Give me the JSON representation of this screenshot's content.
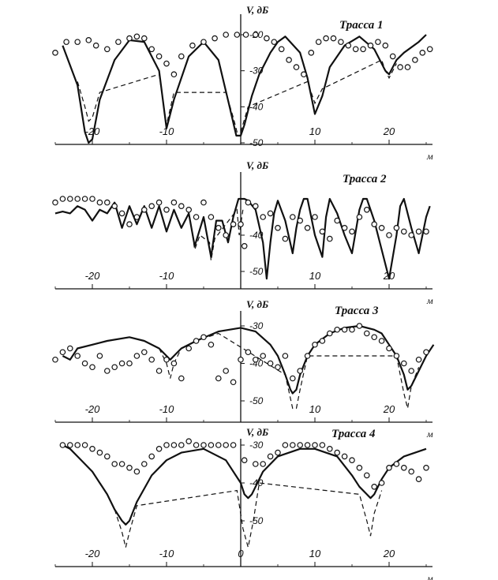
{
  "chart_data": [
    {
      "type": "line",
      "title": "Трасса 1",
      "ylabel": "V, дБ",
      "xlabel": "м",
      "x_ticks": [
        -20,
        -10,
        10,
        20
      ],
      "x_tick_labels": [
        "-20",
        "-10",
        "10",
        "20"
      ],
      "y_ticks": [
        -20,
        -30,
        -40,
        -50
      ],
      "y_tick_labels": [
        "-20",
        "-30",
        "-40",
        "-50"
      ],
      "ylim": [
        -50,
        -17
      ],
      "xlim": [
        -25,
        26
      ],
      "series": [
        {
          "style": "solid",
          "x": [
            -24,
            -22,
            -21,
            -20.5,
            -20,
            -19,
            -17,
            -15,
            -13,
            -11,
            -10,
            -9,
            -7,
            -5,
            -3,
            -1.5,
            -0.6,
            0,
            0.5,
            1,
            1.5,
            2,
            2.5,
            3,
            3.5,
            4,
            5,
            6,
            8,
            9,
            10,
            11,
            12,
            14,
            16,
            18,
            19,
            19.5,
            20,
            21,
            22,
            24,
            25
          ],
          "y": [
            -23,
            -34,
            -47,
            -50,
            -49,
            -38,
            -27,
            -21.5,
            -22,
            -30,
            -46,
            -38,
            -26,
            -22,
            -27,
            -40,
            -48,
            -48,
            -45,
            -41,
            -37,
            -34,
            -31,
            -29,
            -27,
            -25,
            -22,
            -20.5,
            -25,
            -32,
            -42,
            -37,
            -29,
            -23,
            -20.5,
            -24,
            -28,
            -30,
            -31,
            -27,
            -25,
            -22,
            -20
          ]
        },
        {
          "style": "dashed",
          "x": [
            -22,
            -21,
            -20.5,
            -20,
            -19,
            -11,
            -10,
            -9,
            -2,
            -1,
            -0.5,
            0,
            1,
            9,
            10,
            11,
            19,
            19.5,
            20,
            21
          ],
          "y": [
            -33,
            -40,
            -44,
            -43,
            -36,
            -31,
            -45,
            -36,
            -36,
            -43,
            -47,
            -47,
            -40,
            -33,
            -39,
            -35,
            -27,
            -30,
            -32,
            -28
          ]
        }
      ],
      "measured": {
        "x": [
          -25,
          -23.5,
          -22,
          -20.5,
          -19.5,
          -18,
          -16.5,
          -15,
          -14,
          -13,
          -12,
          -11,
          -10,
          -9,
          -8,
          -6.5,
          -5,
          -3.5,
          -2,
          -0.5,
          0.7,
          2,
          3.5,
          4.5,
          5.5,
          6.5,
          7.5,
          8.5,
          9.5,
          10.5,
          11.5,
          12.5,
          13.5,
          14.5,
          15.5,
          16.5,
          17.5,
          18.5,
          19.5,
          20.5,
          21.5,
          22.5,
          23.5,
          24.5,
          25.5
        ],
        "y": [
          -25,
          -22,
          -22,
          -21.5,
          -23,
          -24,
          -22,
          -21,
          -20.5,
          -21,
          -24,
          -26,
          -28,
          -31,
          -26,
          -23,
          -22,
          -21,
          -20,
          -20,
          -20,
          -20,
          -21,
          -22,
          -24,
          -27,
          -29,
          -31,
          -25,
          -22,
          -21,
          -21,
          -22,
          -23,
          -24,
          -24,
          -23,
          -22,
          -23,
          -26,
          -29,
          -29,
          -27,
          -25,
          -24
        ]
      }
    },
    {
      "type": "line",
      "title": "Трасса 2",
      "ylabel": "V, дБ",
      "xlabel": "м",
      "x_ticks": [
        -20,
        -10,
        10,
        20
      ],
      "x_tick_labels": [
        "-20",
        "-10",
        "10",
        "20"
      ],
      "y_ticks": [
        -40,
        -50
      ],
      "y_tick_labels": [
        "-40",
        "-50"
      ],
      "ylim": [
        -52,
        -28
      ],
      "xlim": [
        -25,
        26
      ],
      "series": [
        {
          "style": "solid",
          "x": [
            -25,
            -24,
            -23,
            -22,
            -21,
            -20,
            -19,
            -18,
            -17,
            -16,
            -15,
            -14,
            -13,
            -12,
            -11,
            -10,
            -9,
            -8,
            -7,
            -6.2,
            -5,
            -4,
            -3.3,
            -2.5,
            -1.7,
            -1,
            -0.3,
            0,
            0.5,
            1,
            2,
            3,
            3.5,
            4,
            4.5,
            5,
            6,
            7,
            7.5,
            8,
            8.5,
            9,
            10,
            11,
            11.5,
            12,
            13,
            14,
            15,
            16,
            16.5,
            17,
            18,
            19,
            20,
            21,
            21.5,
            22,
            23,
            24,
            25,
            25.5
          ],
          "y": [
            -34,
            -33.5,
            -34,
            -32,
            -33,
            -36,
            -33,
            -34,
            -31,
            -38,
            -32,
            -37,
            -32,
            -38,
            -32,
            -39,
            -33,
            -38,
            -34,
            -43,
            -35,
            -46,
            -36,
            -36,
            -42,
            -35,
            -30,
            -30,
            -30,
            -30.5,
            -33,
            -42,
            -52,
            -42,
            -34,
            -30.5,
            -36,
            -45,
            -38,
            -33,
            -30,
            -30,
            -40,
            -46,
            -35,
            -30,
            -34,
            -40,
            -45,
            -33,
            -30,
            -30,
            -36,
            -44,
            -52,
            -40,
            -32,
            -30,
            -38,
            -45,
            -35,
            -32
          ]
        },
        {
          "style": "dashed",
          "x": [
            -6.5,
            -6.2,
            -5.5,
            -4.2,
            -4,
            -3.5,
            -0.5,
            -0.2,
            0.3
          ],
          "y": [
            -40,
            -44,
            -40,
            -42,
            -47,
            -41,
            -33,
            -40,
            -33
          ]
        }
      ],
      "measured": {
        "x": [
          -25,
          -24,
          -23,
          -22,
          -21,
          -20,
          -19,
          -18,
          -17,
          -16,
          -15,
          -14,
          -13,
          -12,
          -11,
          -10,
          -9,
          -8,
          -7,
          -6,
          -5,
          -4,
          -3,
          -2,
          -1,
          0,
          0.5,
          1,
          2,
          3,
          4,
          5,
          6,
          7,
          8,
          9,
          10,
          11,
          12,
          13,
          14,
          15,
          16,
          17,
          18,
          19,
          20,
          21,
          22,
          23,
          24,
          25
        ],
        "y": [
          -31,
          -30,
          -30,
          -30,
          -30,
          -30,
          -31,
          -31,
          -32,
          -34,
          -37,
          -35,
          -33,
          -32,
          -31,
          -33,
          -31,
          -32,
          -33,
          -35,
          -31,
          -35,
          -38,
          -40,
          -37,
          -37,
          -43,
          -31,
          -32,
          -35,
          -34,
          -38,
          -41,
          -35,
          -36,
          -38,
          -35,
          -39,
          -41,
          -36,
          -38,
          -39,
          -35,
          -33,
          -37,
          -38,
          -40,
          -38,
          -39,
          -40,
          -39,
          -39
        ]
      }
    },
    {
      "type": "line",
      "title": "Трасса 3",
      "ylabel": "V, дБ",
      "xlabel": "м",
      "x_ticks": [
        -20,
        -10,
        10,
        20
      ],
      "x_tick_labels": [
        "-20",
        "-10",
        "10",
        "20"
      ],
      "y_ticks": [
        -30,
        -40,
        -50
      ],
      "y_tick_labels": [
        "-30",
        "-40",
        "-50"
      ],
      "ylim": [
        -54,
        -28
      ],
      "xlim": [
        -25,
        26
      ],
      "series": [
        {
          "style": "solid",
          "x": [
            -24,
            -23,
            -22,
            -20,
            -18,
            -15,
            -13,
            -11,
            -10,
            -9.5,
            -9,
            -8,
            -6,
            -3,
            0,
            2,
            4,
            5,
            6,
            6.7,
            7,
            7.5,
            8,
            9,
            10,
            12,
            14,
            16,
            18,
            19,
            20,
            21,
            22,
            22.5,
            23,
            24,
            25,
            26
          ],
          "y": [
            -38,
            -39,
            -36,
            -35,
            -34,
            -33,
            -34,
            -36,
            -38,
            -39,
            -38,
            -36,
            -34,
            -31.5,
            -30.5,
            -31.5,
            -35,
            -38,
            -43,
            -47,
            -48,
            -47,
            -43,
            -38,
            -35,
            -32,
            -30.5,
            -30,
            -31,
            -32,
            -35,
            -38,
            -43,
            -47,
            -46,
            -42,
            -38,
            -35
          ]
        },
        {
          "style": "dashed",
          "x": [
            -11,
            -10,
            -9.5,
            -9,
            -8,
            -6,
            -3,
            6,
            7,
            7.5,
            8,
            9,
            21,
            22,
            22.5,
            23,
            24
          ],
          "y": [
            -36,
            -40,
            -44,
            -40,
            -36,
            -34,
            -32,
            -43,
            -52,
            -52,
            -47,
            -38,
            -38,
            -48,
            -52,
            -46,
            -41
          ]
        }
      ],
      "measured": {
        "x": [
          -25,
          -24,
          -23,
          -22,
          -21,
          -20,
          -19,
          -18,
          -17,
          -16,
          -15,
          -14,
          -13,
          -12,
          -11,
          -10,
          -9,
          -8,
          -7,
          -6,
          -5,
          -4,
          -3,
          -2,
          -1,
          0,
          1,
          2,
          3,
          4,
          5,
          6,
          7,
          8,
          9,
          10,
          11,
          12,
          13,
          14,
          15,
          16,
          17,
          18,
          19,
          20,
          21,
          22,
          23,
          24,
          25
        ],
        "y": [
          -39,
          -37,
          -36,
          -38,
          -40,
          -41,
          -38,
          -42,
          -41,
          -40,
          -40,
          -38,
          -37,
          -39,
          -42,
          -39,
          -40,
          -44,
          -36,
          -34,
          -33,
          -35,
          -44,
          -42,
          -45,
          -39,
          -37,
          -39,
          -38,
          -40,
          -41,
          -38,
          -44,
          -42,
          -38,
          -35,
          -34,
          -32,
          -31,
          -31,
          -31,
          -30,
          -32,
          -33,
          -34,
          -36,
          -38,
          -40,
          -42,
          -39,
          -37
        ]
      }
    },
    {
      "type": "line",
      "title": "Трасса 4",
      "ylabel": "V, дБ",
      "xlabel": "м",
      "x_ticks": [
        -20,
        -10,
        0,
        10,
        20
      ],
      "x_tick_labels": [
        "-20",
        "-10",
        "0",
        "10",
        "20"
      ],
      "y_ticks": [
        -30,
        -40,
        -50
      ],
      "y_tick_labels": [
        "-30",
        "-40",
        "-50"
      ],
      "ylim": [
        -56,
        -28
      ],
      "xlim": [
        -25,
        26
      ],
      "series": [
        {
          "style": "solid",
          "x": [
            -24,
            -23,
            -22,
            -20,
            -18,
            -17,
            -16,
            -15.5,
            -15,
            -14,
            -12,
            -10,
            -8,
            -5,
            -2,
            0,
            0.5,
            1,
            1.5,
            2,
            3,
            5,
            8,
            10,
            13,
            15,
            16,
            17,
            17.5,
            18,
            19,
            20,
            22,
            25
          ],
          "y": [
            -30,
            -31,
            -33,
            -37,
            -43,
            -47,
            -50,
            -51,
            -50,
            -45,
            -38,
            -34,
            -32,
            -31,
            -34,
            -40,
            -43,
            -44,
            -43,
            -41,
            -37,
            -33,
            -31,
            -31,
            -33,
            -38,
            -41,
            -43,
            -44,
            -43,
            -39,
            -36,
            -33,
            -31
          ]
        },
        {
          "style": "dashed",
          "x": [
            -17,
            -16,
            -15.5,
            -15,
            -14,
            -0.5,
            0.3,
            1,
            1.7,
            2.5,
            16,
            17,
            17.5,
            18,
            19
          ],
          "y": [
            -47,
            -53,
            -57,
            -53,
            -46,
            -42,
            -52,
            -57,
            -50,
            -40,
            -43,
            -50,
            -54,
            -48,
            -42
          ]
        }
      ],
      "measured": {
        "x": [
          -24,
          -23,
          -22,
          -21,
          -20,
          -19,
          -18,
          -17,
          -16,
          -15,
          -14,
          -13,
          -12,
          -11,
          -10,
          -9,
          -8,
          -7,
          -6,
          -5,
          -4,
          -3,
          -2,
          -1,
          0.5,
          2,
          3,
          4,
          5,
          6,
          7,
          8,
          9,
          10,
          11,
          12,
          13,
          14,
          15,
          16,
          17,
          18,
          19,
          20,
          21,
          22,
          23,
          24,
          25
        ],
        "y": [
          -30,
          -30,
          -30,
          -30,
          -31,
          -32,
          -33,
          -35,
          -35,
          -36,
          -37,
          -35,
          -33,
          -31,
          -30,
          -30,
          -30,
          -29,
          -30,
          -30,
          -30,
          -30,
          -30,
          -30,
          -34,
          -35,
          -35,
          -33,
          -32,
          -30,
          -30,
          -30,
          -30,
          -30,
          -30,
          -31,
          -32,
          -33,
          -34,
          -36,
          -38,
          -41,
          -40,
          -36,
          -35,
          -36,
          -37,
          -39,
          -36
        ]
      }
    }
  ]
}
